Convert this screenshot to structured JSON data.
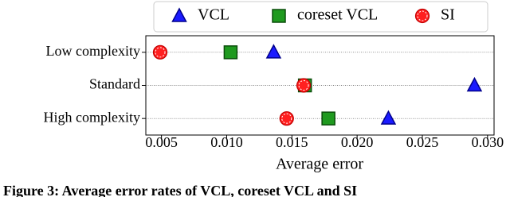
{
  "chart_data": {
    "type": "dot",
    "categories": [
      "Low complexity",
      "Standard",
      "High complexity"
    ],
    "series": [
      {
        "name": "VCL",
        "color": "#1a1aff",
        "marker": "triangle",
        "values": [
          0.0136,
          0.029,
          0.0224
        ]
      },
      {
        "name": "coreset VCL",
        "color": "#1f9a1f",
        "marker": "square",
        "values": [
          0.0103,
          0.016,
          0.0178
        ]
      },
      {
        "name": "SI",
        "color": "#ff2020",
        "marker": "circle",
        "values": [
          0.0049,
          0.0159,
          0.0146
        ]
      }
    ],
    "x_label": "Average error",
    "xlim": [
      0.0038,
      0.0305
    ],
    "xticks": [
      0.005,
      {
        "value": 0.01,
        "label": "0.010"
      },
      0.015,
      {
        "value": 0.02,
        "label": "0.020"
      },
      0.025,
      {
        "value": 0.03,
        "label": "0.030"
      }
    ],
    "grid": true,
    "legend": "top",
    "caption": "Figure 3: Average error rates of VCL, coreset VCL and SI"
  }
}
